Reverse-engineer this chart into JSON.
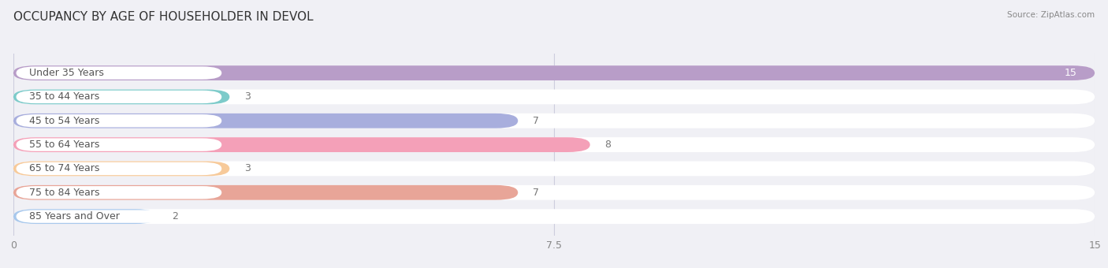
{
  "title": "OCCUPANCY BY AGE OF HOUSEHOLDER IN DEVOL",
  "source": "Source: ZipAtlas.com",
  "categories": [
    "Under 35 Years",
    "35 to 44 Years",
    "45 to 54 Years",
    "55 to 64 Years",
    "65 to 74 Years",
    "75 to 84 Years",
    "85 Years and Over"
  ],
  "values": [
    15,
    3,
    7,
    8,
    3,
    7,
    2
  ],
  "bar_colors": [
    "#b89dc8",
    "#7dcbca",
    "#a8aedd",
    "#f4a0b8",
    "#f7ca9a",
    "#e8a598",
    "#a8c8ec"
  ],
  "bar_bg_color": "#f4f4f8",
  "label_bg_color": "#ffffff",
  "xlim": [
    0,
    15
  ],
  "xticks": [
    0,
    7.5,
    15
  ],
  "title_fontsize": 11,
  "label_fontsize": 9,
  "value_fontsize": 9,
  "background_color": "#f0f0f5",
  "plot_bg_color": "#f0f0f5",
  "grid_color": "#ccccdd",
  "bar_height": 0.62,
  "bar_gap": 0.38
}
